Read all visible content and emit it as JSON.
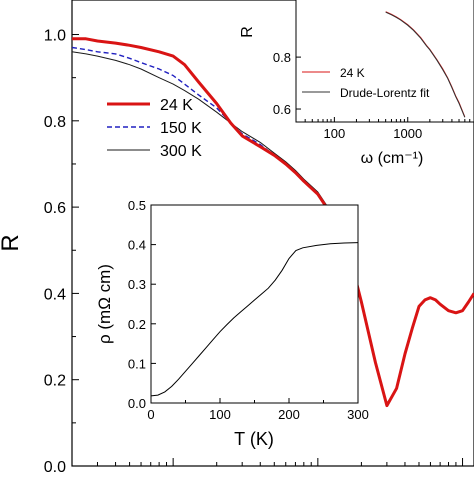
{
  "chart_data": [
    {
      "id": "main",
      "type": "line",
      "xscale": "log",
      "ylabel": "R",
      "ylim": [
        0.0,
        1.08
      ],
      "y_ticks": [
        0.0,
        0.2,
        0.4,
        0.6,
        0.8,
        1.0
      ],
      "y_tick_labels": [
        "0.0",
        "0.2",
        "0.4",
        "0.6",
        "0.8",
        "1.0"
      ],
      "xlim": [
        20,
        12000
      ],
      "legend": {
        "position": "middle-left",
        "entries": [
          "24 K",
          "150 K",
          "300 K"
        ]
      },
      "series": [
        {
          "name": "24 K",
          "color": "#d91414",
          "dash": "solid",
          "x": [
            20,
            25,
            30,
            40,
            50,
            60,
            80,
            100,
            120,
            150,
            200,
            250,
            300,
            400,
            500,
            600,
            700,
            800,
            1000,
            1200,
            1500,
            1800,
            2000,
            2500,
            3000,
            3500,
            4000,
            4500,
            5000,
            5500,
            6000,
            6500,
            7000,
            8000,
            9000,
            10000,
            11000,
            12000
          ],
          "y": [
            0.99,
            0.99,
            0.985,
            0.98,
            0.975,
            0.97,
            0.96,
            0.95,
            0.93,
            0.89,
            0.84,
            0.795,
            0.765,
            0.74,
            0.72,
            0.7,
            0.68,
            0.66,
            0.63,
            0.59,
            0.52,
            0.44,
            0.38,
            0.24,
            0.14,
            0.18,
            0.26,
            0.32,
            0.37,
            0.385,
            0.39,
            0.385,
            0.375,
            0.36,
            0.355,
            0.36,
            0.38,
            0.4
          ]
        },
        {
          "name": "150 K",
          "color": "#2020c0",
          "dash": "dashed",
          "x": [
            20,
            25,
            30,
            40,
            50,
            60,
            80,
            100,
            120,
            150,
            200,
            250,
            300,
            400,
            500,
            600,
            700,
            800,
            1000,
            1200,
            1500,
            1800,
            2000,
            2500,
            3000,
            3500,
            4000,
            4500,
            5000,
            5500,
            6000,
            6500,
            7000,
            8000,
            9000,
            10000,
            11000,
            12000
          ],
          "y": [
            0.97,
            0.965,
            0.96,
            0.955,
            0.945,
            0.935,
            0.92,
            0.905,
            0.885,
            0.86,
            0.83,
            0.795,
            0.77,
            0.745,
            0.72,
            0.7,
            0.68,
            0.66,
            0.63,
            0.59,
            0.52,
            0.44,
            0.38,
            0.24,
            0.14,
            0.18,
            0.26,
            0.32,
            0.37,
            0.385,
            0.39,
            0.385,
            0.375,
            0.36,
            0.355,
            0.36,
            0.38,
            0.4
          ]
        },
        {
          "name": "300 K",
          "color": "#1a1a1a",
          "dash": "solid",
          "x": [
            20,
            25,
            30,
            40,
            50,
            60,
            80,
            100,
            120,
            150,
            200,
            250,
            300,
            400,
            500,
            600,
            700,
            800,
            1000,
            1200,
            1500,
            1800,
            2000,
            2500,
            3000,
            3500,
            4000,
            4500,
            5000,
            5500,
            6000,
            6500,
            7000,
            8000,
            9000,
            10000,
            11000,
            12000
          ],
          "y": [
            0.96,
            0.955,
            0.95,
            0.94,
            0.93,
            0.92,
            0.9,
            0.885,
            0.87,
            0.85,
            0.82,
            0.795,
            0.775,
            0.75,
            0.725,
            0.705,
            0.685,
            0.665,
            0.635,
            0.595,
            0.525,
            0.445,
            0.385,
            0.245,
            0.145,
            0.18,
            0.26,
            0.32,
            0.37,
            0.385,
            0.39,
            0.385,
            0.375,
            0.36,
            0.355,
            0.36,
            0.38,
            0.4
          ]
        }
      ]
    },
    {
      "id": "inset-top-right",
      "type": "line",
      "xscale": "log",
      "xlabel": "ω (cm⁻¹)",
      "ylabel": "R",
      "xlim": [
        30,
        8000
      ],
      "x_ticks": [
        100,
        1000
      ],
      "x_tick_labels": [
        "100",
        "1000"
      ],
      "ylim": [
        0.55,
        1.02
      ],
      "y_ticks": [
        0.6,
        0.8
      ],
      "y_tick_labels": [
        "0.6",
        "0.8"
      ],
      "legend": {
        "position": "bottom-left",
        "entries": [
          "24 K",
          "Drude-Lorentz fit"
        ]
      },
      "series": [
        {
          "name": "24 K",
          "color": "#d91414",
          "x": [
            500,
            600,
            700,
            800,
            1000,
            1200,
            1500,
            1800,
            2000,
            2500,
            3000,
            3500,
            4000,
            4500,
            5000,
            6000
          ],
          "y": [
            0.975,
            0.965,
            0.955,
            0.945,
            0.925,
            0.905,
            0.875,
            0.845,
            0.83,
            0.79,
            0.755,
            0.72,
            0.685,
            0.65,
            0.625,
            0.57
          ]
        },
        {
          "name": "Drude-Lorentz fit",
          "color": "#333333",
          "x": [
            500,
            600,
            700,
            800,
            1000,
            1200,
            1500,
            1800,
            2000,
            2500,
            3000,
            3500,
            4000,
            4500,
            5000,
            6000
          ],
          "y": [
            0.973,
            0.963,
            0.953,
            0.943,
            0.923,
            0.903,
            0.873,
            0.843,
            0.828,
            0.788,
            0.752,
            0.718,
            0.682,
            0.648,
            0.622,
            0.568
          ]
        }
      ]
    },
    {
      "id": "inset-bottom",
      "type": "line",
      "xlabel": "T (K)",
      "ylabel": "ρ (mΩ cm)",
      "xlim": [
        0,
        300
      ],
      "x_ticks": [
        0,
        100,
        200,
        300
      ],
      "x_tick_labels": [
        "0",
        "100",
        "200",
        "300"
      ],
      "ylim": [
        0.0,
        0.5
      ],
      "y_ticks": [
        0.0,
        0.1,
        0.2,
        0.3,
        0.4,
        0.5
      ],
      "y_tick_labels": [
        "0.0",
        "0.1",
        "0.2",
        "0.3",
        "0.4",
        "0.5"
      ],
      "series": [
        {
          "color": "#000000",
          "x": [
            0,
            10,
            20,
            30,
            40,
            50,
            60,
            70,
            80,
            90,
            100,
            110,
            120,
            130,
            140,
            150,
            160,
            170,
            180,
            190,
            200,
            210,
            220,
            240,
            260,
            280,
            300
          ],
          "y": [
            0.018,
            0.02,
            0.028,
            0.042,
            0.06,
            0.08,
            0.1,
            0.12,
            0.14,
            0.16,
            0.18,
            0.198,
            0.215,
            0.23,
            0.245,
            0.26,
            0.275,
            0.29,
            0.31,
            0.335,
            0.365,
            0.385,
            0.392,
            0.398,
            0.402,
            0.404,
            0.405
          ]
        }
      ]
    }
  ]
}
